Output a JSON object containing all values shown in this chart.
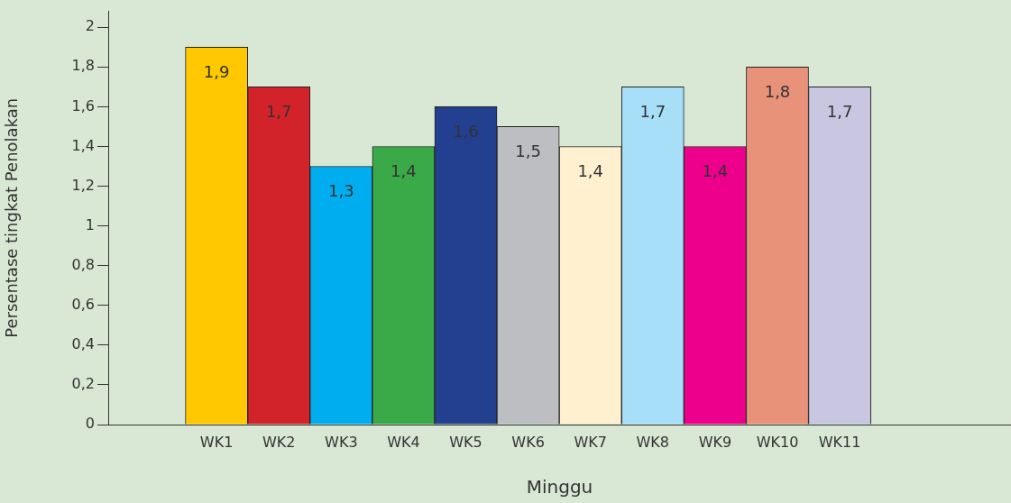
{
  "chart_data": {
    "type": "bar",
    "xlabel": "Minggu",
    "ylabel": "Persentase tingkat Penolakan",
    "categories": [
      "WK1",
      "WK2",
      "WK3",
      "WK4",
      "WK5",
      "WK6",
      "WK7",
      "WK8",
      "WK9",
      "WK10",
      "WK11"
    ],
    "values": [
      1.9,
      1.7,
      1.3,
      1.4,
      1.6,
      1.5,
      1.4,
      1.7,
      1.4,
      1.8,
      1.7
    ],
    "value_labels": [
      "1,9",
      "1,7",
      "1,3",
      "1,4",
      "1,6",
      "1,5",
      "1,4",
      "1,7",
      "1,4",
      "1,8",
      "1,7"
    ],
    "colors": [
      "#ffc800",
      "#d2232a",
      "#00aeef",
      "#3aaa48",
      "#233f8f",
      "#bdbec2",
      "#fff1d0",
      "#a8dff8",
      "#ec008c",
      "#e8927a",
      "#c9c6e2"
    ],
    "ylim": [
      0,
      2.08
    ],
    "yticks": [
      0,
      {
        "value": 0.2,
        "label": "0,2"
      },
      {
        "value": 0.4,
        "label": "0,4"
      },
      {
        "value": 0.6,
        "label": "0,6"
      },
      {
        "value": 0.8,
        "label": "0,8"
      },
      1,
      {
        "value": 1.2,
        "label": "1,2"
      },
      {
        "value": 1.4,
        "label": "1,4"
      },
      {
        "value": 1.6,
        "label": "1,6"
      },
      {
        "value": 1.8,
        "label": "1,8"
      },
      2
    ],
    "grid": false,
    "legend": false
  }
}
